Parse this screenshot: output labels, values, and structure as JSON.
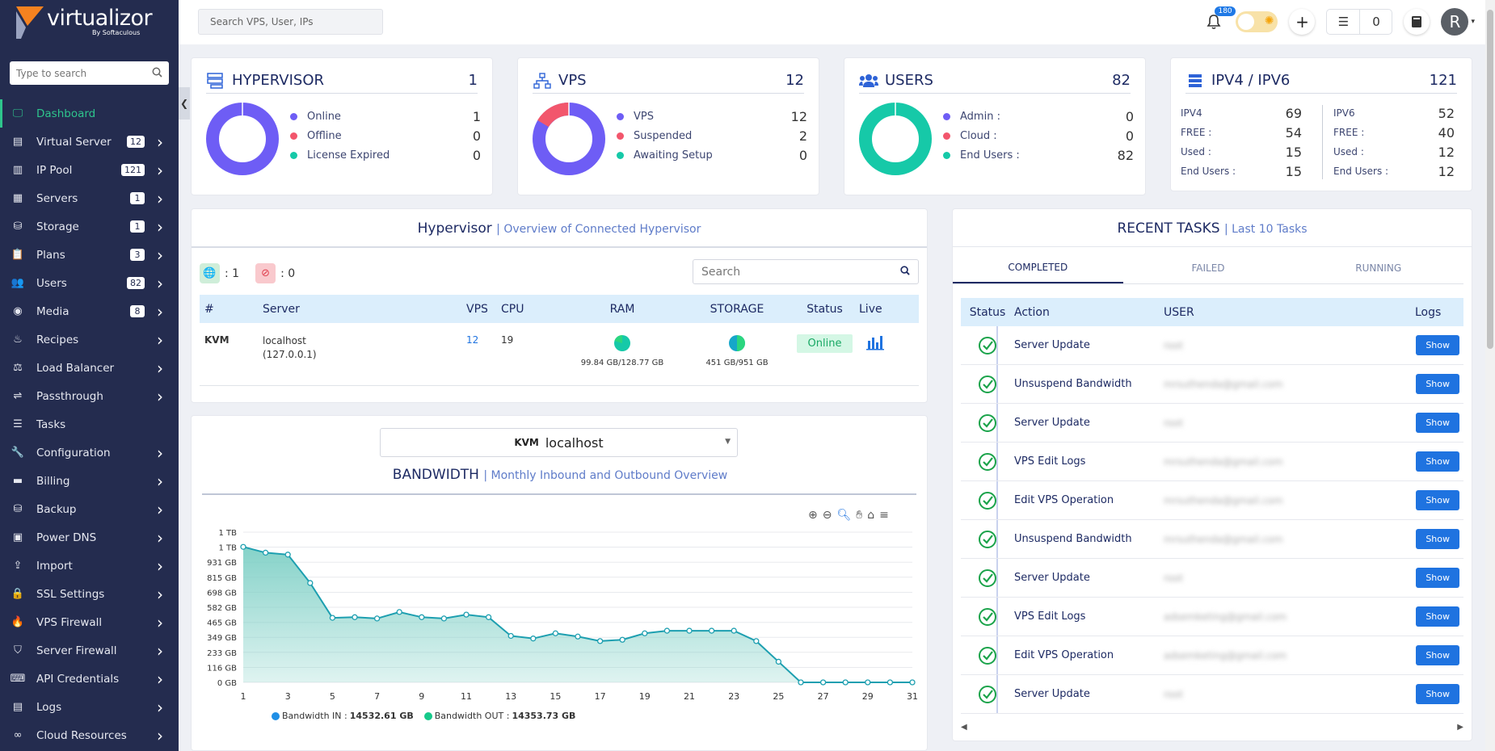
{
  "brand": {
    "name": "virtualizor",
    "sub": "By Softaculous"
  },
  "sidebar": {
    "search_placeholder": "Type to search",
    "items": [
      {
        "label": "Dashboard",
        "icon": "monitor-icon",
        "active": true
      },
      {
        "label": "Virtual Server",
        "icon": "server-stack-icon",
        "badge": "12",
        "chevron": true
      },
      {
        "label": "IP Pool",
        "icon": "ip-icon",
        "badge": "121",
        "chevron": true
      },
      {
        "label": "Servers",
        "icon": "servers-icon",
        "badge": "1",
        "chevron": true
      },
      {
        "label": "Storage",
        "icon": "storage-icon",
        "badge": "1",
        "chevron": true
      },
      {
        "label": "Plans",
        "icon": "clipboard-icon",
        "badge": "3",
        "chevron": true
      },
      {
        "label": "Users",
        "icon": "users-icon",
        "badge": "82",
        "chevron": true
      },
      {
        "label": "Media",
        "icon": "disc-icon",
        "badge": "8",
        "chevron": true
      },
      {
        "label": "Recipes",
        "icon": "chef-icon",
        "chevron": true
      },
      {
        "label": "Load Balancer",
        "icon": "balance-icon",
        "chevron": true
      },
      {
        "label": "Passthrough",
        "icon": "usb-icon",
        "chevron": true
      },
      {
        "label": "Tasks",
        "icon": "list-icon"
      },
      {
        "label": "Configuration",
        "icon": "wrench-icon",
        "chevron": true
      },
      {
        "label": "Billing",
        "icon": "billing-icon",
        "chevron": true
      },
      {
        "label": "Backup",
        "icon": "database-icon",
        "chevron": true
      },
      {
        "label": "Power DNS",
        "icon": "dns-icon",
        "chevron": true
      },
      {
        "label": "Import",
        "icon": "upload-icon",
        "chevron": true
      },
      {
        "label": "SSL Settings",
        "icon": "lock-icon",
        "chevron": true
      },
      {
        "label": "VPS Firewall",
        "icon": "fire-icon",
        "chevron": true
      },
      {
        "label": "Server Firewall",
        "icon": "shield-icon",
        "chevron": true
      },
      {
        "label": "API Credentials",
        "icon": "api-icon",
        "chevron": true
      },
      {
        "label": "Logs",
        "icon": "logs-icon",
        "chevron": true
      },
      {
        "label": "Cloud Resources",
        "icon": "glasses-icon",
        "chevron": true
      }
    ]
  },
  "topbar": {
    "search_placeholder": "Search VPS, User, IPs",
    "notifications": "180",
    "tasks_count": "0",
    "avatar_letter": "R"
  },
  "stats": {
    "hypervisor": {
      "title": "HYPERVISOR",
      "count": "1",
      "legend": [
        {
          "label": "Online",
          "value": "1",
          "color": "#6e5df5"
        },
        {
          "label": "Offline",
          "value": "0",
          "color": "#f2566c"
        },
        {
          "label": "License Expired",
          "value": "0",
          "color": "#16c9a8"
        }
      ]
    },
    "vps": {
      "title": "VPS",
      "count": "12",
      "legend": [
        {
          "label": "VPS",
          "value": "12",
          "color": "#6e5df5"
        },
        {
          "label": "Suspended",
          "value": "2",
          "color": "#f2566c"
        },
        {
          "label": "Awaiting Setup",
          "value": "0",
          "color": "#16c9a8"
        }
      ]
    },
    "users": {
      "title": "USERS",
      "count": "82",
      "legend": [
        {
          "label": "Admin :",
          "value": "0",
          "color": "#6e5df5"
        },
        {
          "label": "Cloud :",
          "value": "0",
          "color": "#f2566c"
        },
        {
          "label": "End Users :",
          "value": "82",
          "color": "#16c9a8"
        }
      ]
    },
    "ip": {
      "title": "IPV4 / IPV6",
      "count": "121",
      "v4": [
        {
          "label": "IPV4",
          "value": "69"
        },
        {
          "label": "FREE :",
          "value": "54"
        },
        {
          "label": "Used :",
          "value": "15"
        },
        {
          "label": "End Users :",
          "value": "15"
        }
      ],
      "v6": [
        {
          "label": "IPV6",
          "value": "52"
        },
        {
          "label": "FREE :",
          "value": "40"
        },
        {
          "label": "Used :",
          "value": "12"
        },
        {
          "label": "End Users :",
          "value": "12"
        }
      ]
    }
  },
  "hypervisor_panel": {
    "title": "Hypervisor",
    "subtitle": "| Overview of Connected Hypervisor",
    "online_count": ": 1",
    "offline_count": ": 0",
    "search_placeholder": "Search",
    "columns": [
      "#",
      "Server",
      "VPS",
      "CPU",
      "RAM",
      "STORAGE",
      "Status",
      "Live"
    ],
    "rows": [
      {
        "type": "KVM",
        "server": "localhost",
        "ip": "(127.0.0.1)",
        "vps": "12",
        "cpu": "19",
        "ram": "99.84 GB/128.77 GB",
        "ram_frac": 0.775,
        "storage": "451 GB/951 GB",
        "storage_frac": 0.474,
        "status": "Online"
      }
    ]
  },
  "bandwidth": {
    "select_type": "KVM",
    "select_server": "localhost",
    "title": "BANDWIDTH",
    "subtitle": "| Monthly Inbound and Outbound Overview",
    "legend_in_label": "Bandwidth IN :",
    "legend_in_value": "14532.61 GB",
    "legend_out_label": "Bandwidth OUT :",
    "legend_out_value": "14353.73 GB"
  },
  "chart_data": {
    "type": "area",
    "x": [
      1,
      2,
      3,
      4,
      5,
      6,
      7,
      8,
      9,
      10,
      11,
      12,
      13,
      14,
      15,
      16,
      17,
      18,
      19,
      20,
      21,
      22,
      23,
      24,
      25,
      26,
      27,
      28,
      29,
      30,
      31
    ],
    "series": [
      {
        "name": "Bandwidth IN",
        "values": [
          1050,
          1005,
          990,
          770,
          500,
          505,
          495,
          545,
          505,
          495,
          525,
          505,
          360,
          340,
          380,
          355,
          320,
          330,
          380,
          400,
          400,
          400,
          400,
          320,
          160,
          0,
          0,
          0,
          0,
          0,
          0
        ]
      }
    ],
    "ytick_labels": [
      "1 TB",
      "1 TB",
      "931 GB",
      "815 GB",
      "698 GB",
      "582 GB",
      "465 GB",
      "349 GB",
      "233 GB",
      "116 GB",
      "0 GB"
    ],
    "ytick_values": [
      1164,
      1048,
      931,
      815,
      698,
      582,
      465,
      349,
      233,
      116,
      0
    ],
    "xtick_labels": [
      "1",
      "3",
      "5",
      "7",
      "9",
      "11",
      "13",
      "15",
      "17",
      "19",
      "21",
      "23",
      "25",
      "27",
      "29",
      "31"
    ],
    "ylim": [
      0,
      1164
    ],
    "unit": "GB",
    "colors": {
      "line": "#1d9fb0",
      "fill": "#7fd0c6"
    }
  },
  "recent_tasks": {
    "title": "RECENT TASKS",
    "subtitle": "| Last 10 Tasks",
    "tabs": [
      "COMPLETED",
      "FAILED",
      "RUNNING"
    ],
    "columns": [
      "Status",
      "Action",
      "USER",
      "Logs"
    ],
    "show_label": "Show",
    "rows": [
      {
        "action": "Server Update",
        "user": "root"
      },
      {
        "action": "Unsuspend Bandwidth",
        "user": "mrsuthenda@gmail.com"
      },
      {
        "action": "Server Update",
        "user": "root"
      },
      {
        "action": "VPS Edit Logs",
        "user": "mrsuthenda@gmail.com"
      },
      {
        "action": "Edit VPS Operation",
        "user": "mrsuthenda@gmail.com"
      },
      {
        "action": "Unsuspend Bandwidth",
        "user": "mrsuthenda@gmail.com"
      },
      {
        "action": "Server Update",
        "user": "root"
      },
      {
        "action": "VPS Edit Logs",
        "user": "adsemketing@gmail.com"
      },
      {
        "action": "Edit VPS Operation",
        "user": "adsemketing@gmail.com"
      },
      {
        "action": "Server Update",
        "user": "root"
      }
    ]
  }
}
